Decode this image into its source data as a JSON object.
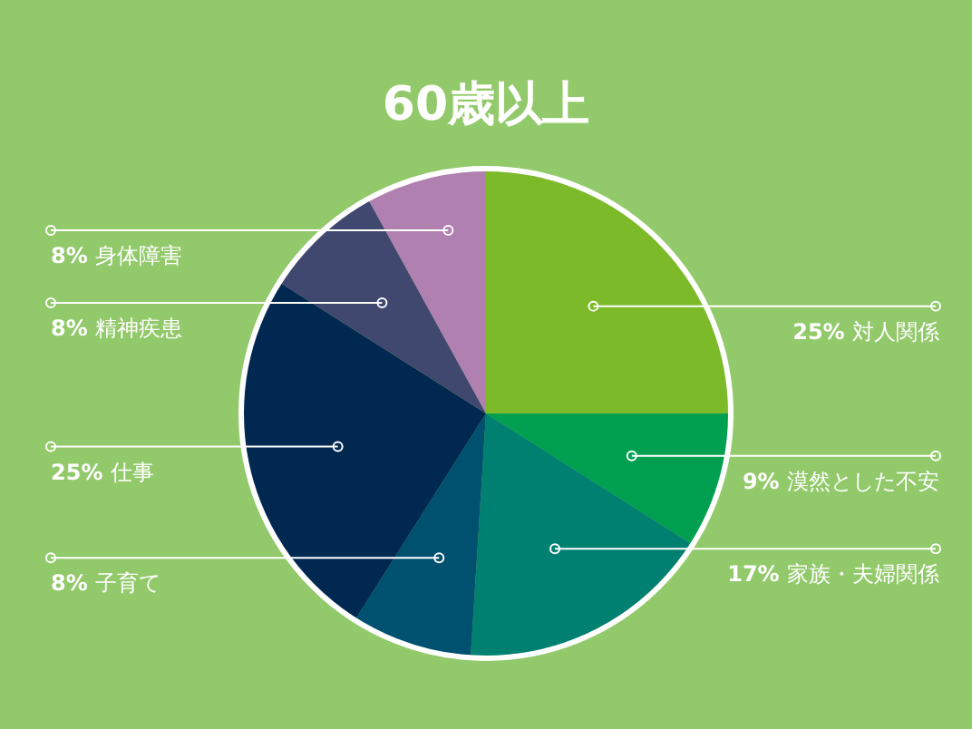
{
  "chart_data": {
    "type": "pie",
    "title": "60歳以上",
    "categories": [
      "対人関係",
      "漠然とした不安",
      "家族・夫婦関係",
      "子育て",
      "仕事",
      "精神疾患",
      "身体障害"
    ],
    "values": [
      25,
      9,
      17,
      8,
      25,
      8,
      8
    ],
    "value_labels": [
      "25%",
      "9%",
      "17%",
      "8%",
      "25%",
      "8%",
      "8%"
    ],
    "colors": [
      "#7dba2a",
      "#00a050",
      "#008070",
      "#005070",
      "#002850",
      "#404870",
      "#b080b0"
    ]
  }
}
